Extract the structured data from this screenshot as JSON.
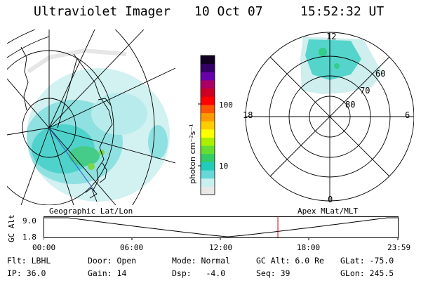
{
  "header": {
    "instrument": "Ultraviolet Imager",
    "date": "10 Oct 07",
    "time": "15:52:32 UT"
  },
  "colorbar": {
    "label": "photon cm⁻²s⁻¹",
    "ticks": [
      "100",
      "10"
    ],
    "colors": [
      "#e8e8e8",
      "#c8f0f0",
      "#66d8d8",
      "#22ccbb",
      "#33cc66",
      "#66dd33",
      "#aaee00",
      "#ffff00",
      "#ffcc00",
      "#ff9900",
      "#ff5500",
      "#ff0000",
      "#cc0022",
      "#aa0066",
      "#6600aa",
      "#330066",
      "#110022"
    ]
  },
  "polar_plot": {
    "mlt_labels": [
      "12",
      "6",
      "0",
      "18"
    ],
    "lat_labels": [
      "60",
      "70",
      "80"
    ]
  },
  "timeline": {
    "left_label": "Geographic Lat/Lon",
    "right_label": "Apex MLat/MLT",
    "axis_label": "GC Alt",
    "y_ticks": [
      "9.0",
      "1.8"
    ],
    "x_ticks": [
      "00:00",
      "06:00",
      "12:00",
      "18:00",
      "23:59"
    ],
    "current_marker_hours": 15.875
  },
  "info": {
    "filter": "Flt: LBHL",
    "ip": "IP: 36.0",
    "door": "Door: Open",
    "gain": "Gain: 14",
    "mode": "Mode: Normal",
    "dsp": "Dsp:   -4.0",
    "gc_alt": "GC Alt: 6.0 Re",
    "seq": "Seq: 39",
    "glat": "GLat: -75.0",
    "glon": "GLon: 245.5"
  }
}
